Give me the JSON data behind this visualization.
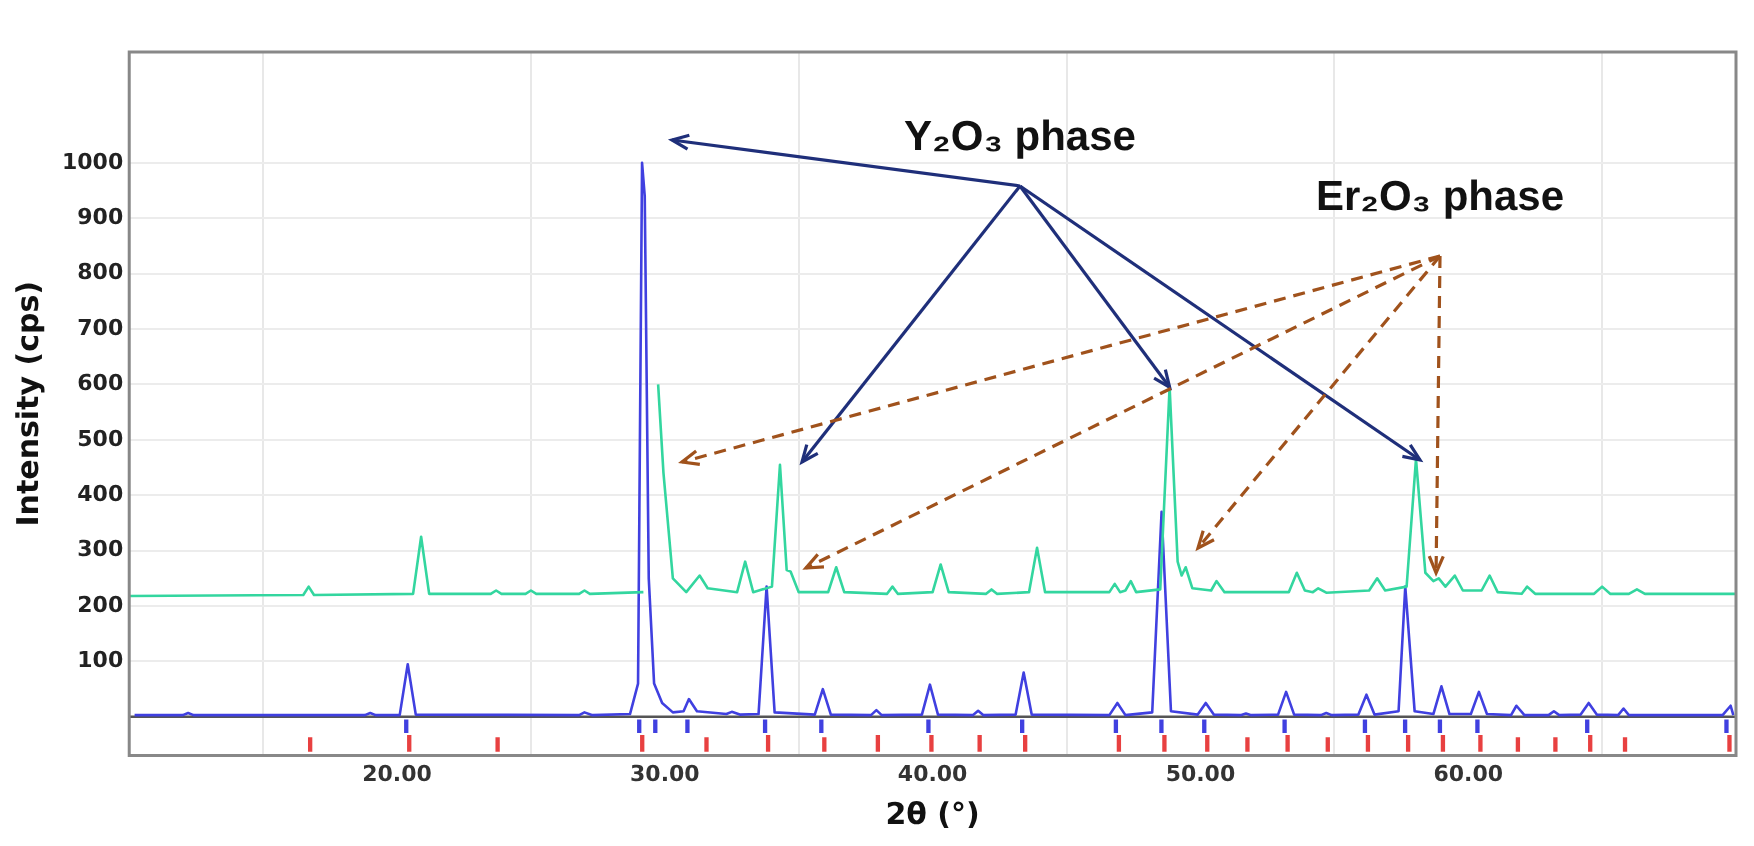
{
  "chart_data": {
    "type": "line",
    "xlabel": "2θ (°)",
    "ylabel": "Intensity (cps)",
    "xlim": [
      10,
      70
    ],
    "xticks": [
      {
        "value": 20,
        "label": "20.00"
      },
      {
        "value": 30,
        "label": "30.00"
      },
      {
        "value": 40,
        "label": "40.00"
      },
      {
        "value": 50,
        "label": "50.00"
      },
      {
        "value": 60,
        "label": "60.00"
      }
    ],
    "ylim": [
      -70,
      1200
    ],
    "yticks": [
      100,
      200,
      300,
      400,
      500,
      600,
      700,
      800,
      900,
      1000
    ],
    "grid": true,
    "legend": false,
    "marker": "none",
    "line_style": "solid",
    "annotations": [
      {
        "text": "Y₂O₃ phase",
        "x": 48.85,
        "y": 595
      },
      {
        "text": "Er₂O₃ phase",
        "x": 58.8,
        "y": 260
      }
    ],
    "ref_lines": [
      {
        "axis": "y",
        "value": 0,
        "color": "#555555"
      }
    ],
    "series": [
      {
        "color": "#33d69f",
        "x": [
          10,
          16.5,
          16.7,
          16.9,
          20.6,
          20.9,
          21.2,
          23.5,
          23.7,
          23.9,
          24.8,
          25,
          25.2,
          26.8,
          27,
          27.2,
          29.2,
          29.45,
          29.6,
          29.75,
          29.95,
          30.3,
          30.8,
          31.3,
          31.6,
          32.7,
          33.0,
          33.3,
          34.0,
          34.3,
          34.55,
          34.7,
          35.0,
          36.1,
          36.4,
          36.7,
          38.3,
          38.5,
          38.7,
          40.0,
          40.3,
          40.6,
          42.0,
          42.2,
          42.4,
          43.6,
          43.9,
          44.2,
          46.6,
          46.8,
          47.0,
          47.2,
          47.4,
          47.6,
          48.5,
          48.85,
          49.15,
          49.3,
          49.45,
          49.7,
          50.4,
          50.6,
          50.9,
          53.3,
          53.6,
          53.9,
          54.2,
          54.4,
          54.7,
          56.3,
          56.6,
          56.9,
          57.7,
          58.05,
          58.4,
          58.7,
          58.9,
          59.15,
          59.5,
          59.8,
          60.5,
          60.8,
          61.1,
          62,
          62.2,
          62.5,
          64.7,
          65,
          65.3,
          66,
          66.3,
          66.6,
          70
        ],
        "values": [
          218,
          220,
          235,
          220,
          222,
          325,
          222,
          222,
          228,
          222,
          222,
          228,
          222,
          222,
          228,
          222,
          225,
          null,
          null,
          600,
          440,
          250,
          225,
          255,
          232,
          225,
          280,
          225,
          235,
          455,
          265,
          262,
          225,
          225,
          270,
          225,
          222,
          235,
          222,
          225,
          275,
          225,
          222,
          230,
          222,
          225,
          305,
          225,
          225,
          240,
          225,
          228,
          245,
          225,
          230,
          595,
          280,
          255,
          270,
          232,
          228,
          245,
          225,
          225,
          260,
          228,
          225,
          232,
          224,
          228,
          250,
          228,
          235,
          465,
          260,
          245,
          250,
          235,
          255,
          228,
          228,
          255,
          225,
          222,
          235,
          222,
          222,
          235,
          222,
          222,
          230,
          222,
          222
        ]
      },
      {
        "color": "#4040e0",
        "x": [
          10.2,
          12,
          12.2,
          12.4,
          18.8,
          19,
          19.2,
          20.1,
          20.4,
          20.7,
          26.8,
          27,
          27.3,
          28.7,
          29.0,
          29.15,
          29.25,
          29.4,
          29.6,
          29.9,
          30.3,
          30.7,
          30.9,
          31.2,
          32.3,
          32.5,
          32.8,
          33.5,
          33.8,
          34.1,
          35.6,
          35.9,
          36.2,
          37.7,
          37.9,
          38.1,
          39.6,
          39.9,
          40.2,
          41.5,
          41.7,
          41.9,
          43.1,
          43.4,
          43.7,
          46.6,
          46.9,
          47.2,
          48.2,
          48.55,
          48.9,
          49.9,
          50.2,
          50.5,
          51.5,
          51.7,
          51.9,
          52.9,
          53.2,
          53.5,
          54.5,
          54.7,
          54.9,
          55.9,
          56.2,
          56.5,
          57.4,
          57.65,
          58.0,
          58.7,
          59.0,
          59.3,
          60.1,
          60.4,
          60.7,
          61.6,
          61.8,
          62.1,
          63.0,
          63.2,
          63.4,
          64.2,
          64.5,
          64.8,
          65.6,
          65.8,
          66.0,
          69.5,
          69.8,
          69.9
        ],
        "values": [
          3,
          3,
          7,
          3,
          3,
          7,
          3,
          3,
          95,
          4,
          3,
          8,
          3,
          5,
          60,
          1000,
          940,
          250,
          60,
          25,
          8,
          10,
          32,
          10,
          5,
          9,
          4,
          5,
          235,
          8,
          4,
          50,
          4,
          3,
          12,
          3,
          4,
          58,
          4,
          3,
          11,
          3,
          4,
          80,
          4,
          3,
          25,
          3,
          8,
          370,
          10,
          4,
          25,
          4,
          3,
          6,
          3,
          4,
          45,
          4,
          3,
          7,
          3,
          4,
          40,
          4,
          10,
          235,
          10,
          5,
          55,
          5,
          5,
          45,
          5,
          3,
          20,
          3,
          3,
          10,
          3,
          4,
          25,
          4,
          3,
          15,
          3,
          3,
          20,
          3
        ]
      },
      {
        "type": "bar",
        "color": "#4040e0",
        "x": [
          20.4,
          29.1,
          29.7,
          30.9,
          33.8,
          35.9,
          39.9,
          43.4,
          46.9,
          48.6,
          50.2,
          53.2,
          56.2,
          57.7,
          59.0,
          60.4,
          64.5,
          69.7
        ],
        "base": [
          -28,
          -28,
          -28,
          -28,
          -28,
          -28,
          -28,
          -28,
          -28,
          -28,
          -28,
          -28,
          -28,
          -28,
          -28,
          -28,
          -28,
          -28
        ],
        "values": [
          22,
          22,
          22,
          22,
          22,
          22,
          22,
          22,
          22,
          22,
          22,
          22,
          22,
          22,
          22,
          22,
          22,
          22
        ]
      },
      {
        "type": "bar",
        "color": "#e84040",
        "x": [
          16.7,
          20.4,
          23.7,
          29.1,
          31.5,
          33.8,
          35.9,
          37.9,
          39.9,
          41.7,
          43.4,
          46.9,
          48.6,
          50.2,
          51.7,
          53.2,
          54.7,
          56.2,
          57.7,
          59.0,
          60.4,
          61.8,
          63.2,
          64.5,
          65.8,
          69.7
        ],
        "base": [
          -62,
          -62,
          -62,
          -62,
          -62,
          -62,
          -62,
          -62,
          -62,
          -62,
          -62,
          -62,
          -62,
          -62,
          -62,
          -62,
          -62,
          -62,
          -62,
          -62,
          -62,
          -62,
          -62,
          -62,
          -62,
          -62
        ],
        "values": [
          24,
          28,
          24,
          28,
          24,
          28,
          24,
          28,
          28,
          28,
          28,
          28,
          28,
          28,
          24,
          28,
          24,
          28,
          28,
          28,
          28,
          24,
          24,
          28,
          24,
          28
        ]
      }
    ]
  }
}
